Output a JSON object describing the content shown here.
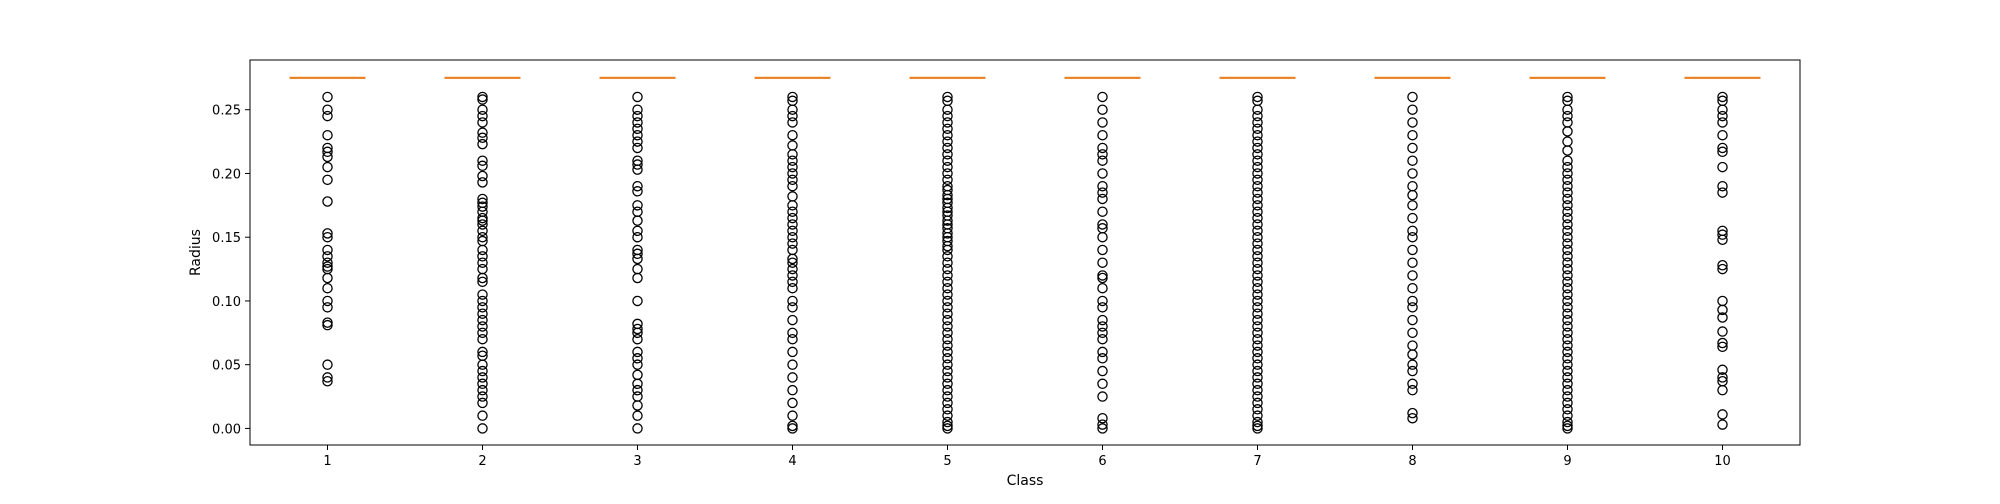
{
  "chart_data": {
    "type": "boxplot",
    "xlabel": "Class",
    "ylabel": "Radius",
    "categories": [
      "1",
      "2",
      "3",
      "4",
      "5",
      "6",
      "7",
      "8",
      "9",
      "10"
    ],
    "ylim": [
      -0.013,
      0.289
    ],
    "yticks": [
      "0.00",
      "0.05",
      "0.10",
      "0.15",
      "0.20",
      "0.25"
    ],
    "grid": false,
    "median": 0.275,
    "box_color": "#1f77b4",
    "median_color": "#ff7f0e",
    "outlier_color": "#000000",
    "outliers": [
      [
        0.26,
        0.25,
        0.245,
        0.23,
        0.22,
        0.217,
        0.213,
        0.205,
        0.195,
        0.178,
        0.153,
        0.15,
        0.14,
        0.135,
        0.13,
        0.127,
        0.125,
        0.118,
        0.11,
        0.1,
        0.095,
        0.083,
        0.081,
        0.05,
        0.04,
        0.037
      ],
      [
        0.26,
        0.258,
        0.25,
        0.245,
        0.24,
        0.232,
        0.228,
        0.223,
        0.21,
        0.206,
        0.198,
        0.193,
        0.18,
        0.177,
        0.174,
        0.17,
        0.165,
        0.163,
        0.16,
        0.155,
        0.15,
        0.147,
        0.14,
        0.135,
        0.13,
        0.125,
        0.118,
        0.115,
        0.105,
        0.1,
        0.095,
        0.09,
        0.085,
        0.08,
        0.075,
        0.07,
        0.06,
        0.057,
        0.05,
        0.045,
        0.04,
        0.035,
        0.03,
        0.025,
        0.02,
        0.01,
        0.0
      ],
      [
        0.26,
        0.25,
        0.245,
        0.24,
        0.235,
        0.23,
        0.225,
        0.22,
        0.21,
        0.207,
        0.203,
        0.19,
        0.186,
        0.175,
        0.17,
        0.163,
        0.155,
        0.15,
        0.14,
        0.137,
        0.133,
        0.125,
        0.118,
        0.1,
        0.082,
        0.078,
        0.075,
        0.07,
        0.06,
        0.055,
        0.05,
        0.042,
        0.035,
        0.03,
        0.025,
        0.018,
        0.01,
        0.0
      ],
      [
        0.26,
        0.257,
        0.25,
        0.245,
        0.24,
        0.23,
        0.222,
        0.215,
        0.21,
        0.205,
        0.2,
        0.195,
        0.19,
        0.182,
        0.175,
        0.17,
        0.165,
        0.16,
        0.155,
        0.15,
        0.145,
        0.14,
        0.133,
        0.13,
        0.125,
        0.12,
        0.115,
        0.11,
        0.1,
        0.095,
        0.085,
        0.075,
        0.07,
        0.06,
        0.05,
        0.04,
        0.03,
        0.02,
        0.01,
        0.002,
        0.0
      ],
      [
        0.26,
        0.257,
        0.25,
        0.245,
        0.24,
        0.235,
        0.23,
        0.225,
        0.22,
        0.215,
        0.21,
        0.205,
        0.2,
        0.195,
        0.19,
        0.187,
        0.183,
        0.18,
        0.177,
        0.173,
        0.17,
        0.167,
        0.163,
        0.16,
        0.157,
        0.153,
        0.15,
        0.147,
        0.143,
        0.14,
        0.135,
        0.13,
        0.125,
        0.12,
        0.115,
        0.11,
        0.105,
        0.1,
        0.095,
        0.09,
        0.085,
        0.08,
        0.075,
        0.07,
        0.065,
        0.06,
        0.055,
        0.05,
        0.045,
        0.04,
        0.035,
        0.03,
        0.025,
        0.02,
        0.015,
        0.01,
        0.005,
        0.002,
        0.0
      ],
      [
        0.26,
        0.25,
        0.24,
        0.23,
        0.22,
        0.215,
        0.21,
        0.2,
        0.19,
        0.185,
        0.18,
        0.17,
        0.16,
        0.157,
        0.15,
        0.14,
        0.13,
        0.12,
        0.118,
        0.11,
        0.1,
        0.095,
        0.085,
        0.08,
        0.075,
        0.07,
        0.06,
        0.055,
        0.045,
        0.035,
        0.025,
        0.008,
        0.003,
        0.0
      ],
      [
        0.26,
        0.257,
        0.25,
        0.245,
        0.24,
        0.235,
        0.23,
        0.225,
        0.22,
        0.215,
        0.21,
        0.205,
        0.2,
        0.195,
        0.19,
        0.185,
        0.18,
        0.175,
        0.17,
        0.165,
        0.16,
        0.155,
        0.15,
        0.145,
        0.14,
        0.135,
        0.13,
        0.125,
        0.12,
        0.115,
        0.11,
        0.105,
        0.1,
        0.095,
        0.09,
        0.085,
        0.08,
        0.075,
        0.07,
        0.065,
        0.06,
        0.055,
        0.05,
        0.045,
        0.04,
        0.035,
        0.03,
        0.025,
        0.02,
        0.015,
        0.01,
        0.005,
        0.002,
        0.0
      ],
      [
        0.26,
        0.25,
        0.24,
        0.23,
        0.22,
        0.21,
        0.2,
        0.19,
        0.183,
        0.175,
        0.165,
        0.155,
        0.15,
        0.14,
        0.13,
        0.12,
        0.11,
        0.1,
        0.095,
        0.085,
        0.075,
        0.065,
        0.058,
        0.05,
        0.045,
        0.035,
        0.03,
        0.012,
        0.008
      ],
      [
        0.26,
        0.257,
        0.25,
        0.245,
        0.24,
        0.233,
        0.225,
        0.218,
        0.21,
        0.205,
        0.2,
        0.195,
        0.19,
        0.185,
        0.18,
        0.175,
        0.17,
        0.165,
        0.16,
        0.155,
        0.15,
        0.145,
        0.14,
        0.135,
        0.13,
        0.125,
        0.12,
        0.115,
        0.11,
        0.105,
        0.1,
        0.095,
        0.09,
        0.085,
        0.08,
        0.075,
        0.07,
        0.065,
        0.06,
        0.055,
        0.05,
        0.045,
        0.04,
        0.035,
        0.03,
        0.025,
        0.02,
        0.015,
        0.01,
        0.005,
        0.002,
        0.0
      ],
      [
        0.26,
        0.257,
        0.25,
        0.245,
        0.24,
        0.23,
        0.22,
        0.217,
        0.205,
        0.19,
        0.185,
        0.155,
        0.152,
        0.148,
        0.128,
        0.125,
        0.1,
        0.093,
        0.087,
        0.076,
        0.067,
        0.064,
        0.046,
        0.04,
        0.037,
        0.03,
        0.011,
        0.003
      ]
    ]
  }
}
